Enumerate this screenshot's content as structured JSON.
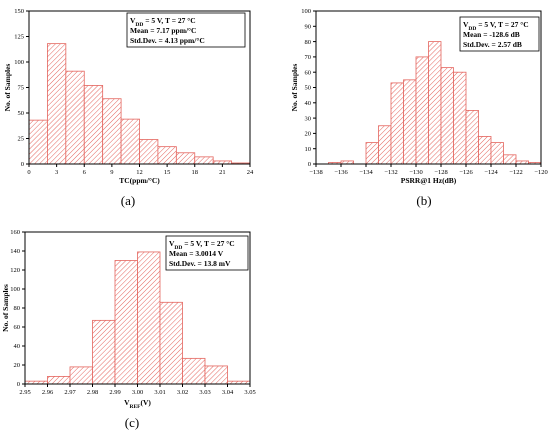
{
  "chart_data": [
    {
      "type": "bar",
      "panel_label": "(a)",
      "xlabel": "TC(ppm/°C)",
      "ylabel": "No. of Samples",
      "xlim": [
        0,
        24
      ],
      "ylim": [
        0,
        150
      ],
      "xticks": [
        "0",
        "3",
        "6",
        "9",
        "12",
        "15",
        "18",
        "21",
        "24"
      ],
      "yticks": [
        "0",
        "25",
        "50",
        "75",
        "100",
        "125",
        "150"
      ],
      "bin_edges": [
        0,
        2,
        4,
        6,
        8,
        10,
        12,
        14,
        16,
        18,
        20,
        22,
        24
      ],
      "values": [
        43,
        118,
        91,
        77,
        64,
        44,
        24,
        17,
        11,
        7,
        3,
        1
      ],
      "stats": [
        "V_DD = 5 V, T = 27 °C",
        "Mean = 7.17 ppm/°C",
        "Std.Dev. = 4.13 ppm/°C"
      ]
    },
    {
      "type": "bar",
      "panel_label": "(b)",
      "xlabel": "PSRR@1 Hz(dB)",
      "ylabel": "No. of Samples",
      "xlim": [
        -138,
        -120
      ],
      "ylim": [
        0,
        100
      ],
      "xticks": [
        "−138",
        "−136",
        "−134",
        "−132",
        "−130",
        "−128",
        "−126",
        "−124",
        "−122",
        "−120"
      ],
      "yticks": [
        "0",
        "10",
        "20",
        "30",
        "40",
        "50",
        "60",
        "70",
        "80",
        "90",
        "100"
      ],
      "bin_edges": [
        -137,
        -136,
        -135,
        -134,
        -133,
        -132,
        -131,
        -130,
        -129,
        -128,
        -127,
        -126,
        -125,
        -124,
        -123,
        -122,
        -121,
        -120
      ],
      "values": [
        1,
        2,
        0,
        14,
        25,
        53,
        55,
        70,
        80,
        63,
        60,
        35,
        18,
        14,
        6,
        2,
        1
      ],
      "stats": [
        "V_DD = 5 V, T = 27 °C",
        "Mean = -128.6 dB",
        "Std.Dev. = 2.57 dB"
      ]
    },
    {
      "type": "bar",
      "panel_label": "(c)",
      "xlabel": "V_REF(V)",
      "ylabel": "No. of Samples",
      "xlim": [
        2.95,
        3.05
      ],
      "ylim": [
        0,
        160
      ],
      "xticks": [
        "2.95",
        "2.96",
        "2.97",
        "2.98",
        "2.99",
        "3.00",
        "3.01",
        "3.02",
        "3.03",
        "3.04",
        "3.05"
      ],
      "yticks": [
        "0",
        "20",
        "40",
        "60",
        "80",
        "100",
        "120",
        "140",
        "160"
      ],
      "bin_edges": [
        2.95,
        2.96,
        2.97,
        2.98,
        2.99,
        3.0,
        3.01,
        3.02,
        3.03,
        3.04,
        3.05
      ],
      "values": [
        3,
        8,
        18,
        67,
        130,
        139,
        86,
        27,
        19,
        3
      ],
      "stats": [
        "V_DD = 5 V, T = 27 °C",
        "Mean = 3.0014 V",
        "Std.Dev. = 13.8 mV"
      ]
    }
  ]
}
